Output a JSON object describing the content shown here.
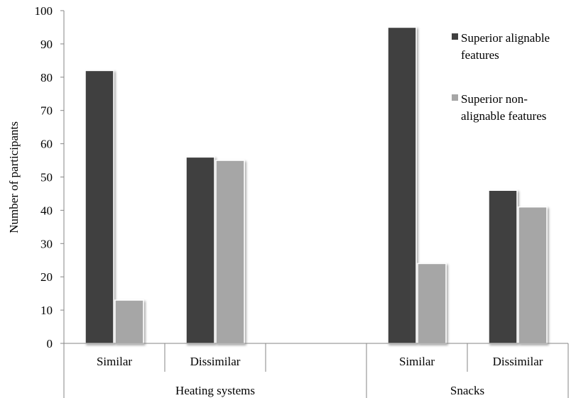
{
  "chart_data": {
    "type": "bar",
    "title": "",
    "xlabel": "",
    "ylabel": "Number of participants",
    "ylim": [
      0,
      100
    ],
    "yticks": [
      0,
      10,
      20,
      30,
      40,
      50,
      60,
      70,
      80,
      90,
      100
    ],
    "groups": [
      {
        "label": "Heating systems",
        "categories": [
          "Similar",
          "Dissimilar"
        ]
      },
      {
        "label": "Snacks",
        "categories": [
          "Similar",
          "Dissimilar"
        ]
      }
    ],
    "categories": [
      "Similar",
      "Dissimilar",
      "",
      "Similar",
      "Dissimilar"
    ],
    "series": [
      {
        "name": "Superior alignable features",
        "color": "#404040",
        "values": [
          82,
          56,
          null,
          95,
          46
        ]
      },
      {
        "name": "Superior non-alignable features",
        "color": "#a6a6a6",
        "values": [
          13,
          55,
          null,
          24,
          41
        ]
      }
    ],
    "legend": {
      "position": "top-right",
      "entries": [
        {
          "lines": [
            "Superior alignable",
            "features"
          ],
          "color": "#404040"
        },
        {
          "lines": [
            "Superior non-",
            "alignable features"
          ],
          "color": "#a6a6a6"
        }
      ]
    },
    "grid": false
  }
}
